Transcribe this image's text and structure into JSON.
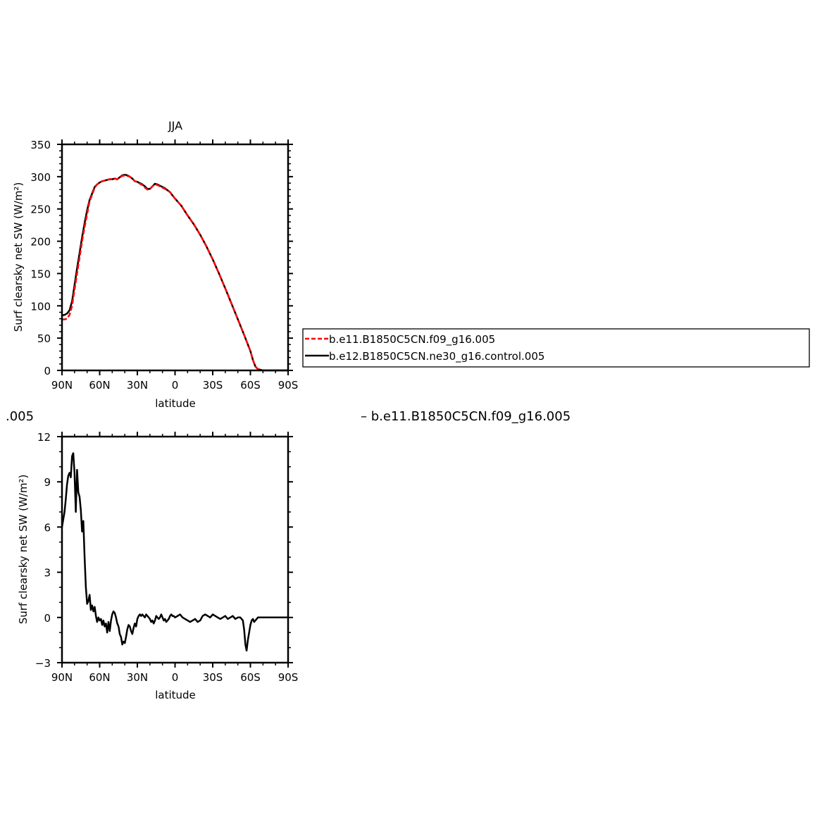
{
  "title_prefix": ".005",
  "diff_label": "– b.e11.B1850C5CN.f09_g16.005",
  "chart_data": [
    {
      "type": "line",
      "title": "JJA",
      "xlabel": "latitude",
      "ylabel": "Surf clearsky net SW (W/m²)",
      "x_ticks": [
        "90N",
        "60N",
        "30N",
        "0",
        "30S",
        "60S",
        "90S"
      ],
      "x_tick_values": [
        90,
        60,
        30,
        0,
        -30,
        -60,
        -90
      ],
      "y_ticks": [
        "0",
        "50",
        "100",
        "150",
        "200",
        "250",
        "300",
        "350"
      ],
      "ylim": [
        0,
        350
      ],
      "xlim": [
        90,
        -90
      ],
      "legend": [
        {
          "name": "b.e11.B1850C5CN.f09_g16.005",
          "color": "#ff0000",
          "dash": true
        },
        {
          "name": "b.e12.B1850C5CN.ne30_g16.control.005",
          "color": "#000000",
          "dash": false
        }
      ],
      "series": [
        {
          "name": "b.e11.B1850C5CN.f09_g16.005",
          "color": "#ff0000",
          "dash": true,
          "x": [
            90,
            88,
            86,
            84,
            82,
            80,
            78,
            76,
            74,
            72,
            70,
            68,
            66,
            64,
            62,
            60,
            58,
            56,
            54,
            52,
            50,
            48,
            46,
            44,
            42,
            40,
            38,
            36,
            34,
            32,
            30,
            28,
            26,
            24,
            22,
            20,
            18,
            16,
            14,
            12,
            10,
            8,
            6,
            4,
            2,
            0,
            -5,
            -10,
            -15,
            -20,
            -25,
            -30,
            -35,
            -40,
            -45,
            -50,
            -55,
            -60,
            -62,
            -64,
            -66,
            -68,
            -70,
            -75,
            -80,
            -85,
            -90
          ],
          "y": [
            79,
            79,
            80,
            86,
            100,
            125,
            150,
            175,
            200,
            222,
            242,
            262,
            272,
            283,
            288,
            291,
            293,
            294,
            295,
            296,
            296,
            297,
            296,
            299,
            301,
            302,
            301,
            300,
            297,
            293,
            292,
            289,
            287,
            283,
            280,
            281,
            285,
            288,
            287,
            285,
            283,
            281,
            279,
            276,
            271,
            266,
            255,
            240,
            226,
            210,
            192,
            172,
            150,
            127,
            103,
            79,
            55,
            30,
            16,
            6,
            2,
            1,
            0,
            0,
            0,
            0,
            0
          ]
        },
        {
          "name": "b.e12.B1850C5CN.ne30_g16.control.005",
          "color": "#000000",
          "dash": false,
          "x": [
            90,
            88,
            86,
            84,
            82,
            80,
            78,
            76,
            74,
            72,
            70,
            68,
            66,
            64,
            62,
            60,
            58,
            56,
            54,
            52,
            50,
            48,
            46,
            44,
            42,
            40,
            38,
            36,
            34,
            32,
            30,
            28,
            26,
            24,
            22,
            20,
            18,
            16,
            14,
            12,
            10,
            8,
            6,
            4,
            2,
            0,
            -5,
            -10,
            -15,
            -20,
            -25,
            -30,
            -35,
            -40,
            -45,
            -50,
            -55,
            -60,
            -62,
            -64,
            -66,
            -68,
            -70,
            -75,
            -80,
            -85,
            -90
          ],
          "y": [
            85,
            86,
            88,
            93,
            107,
            132,
            158,
            182,
            206,
            228,
            248,
            264,
            274,
            284,
            288,
            291,
            293,
            294,
            295,
            296,
            296,
            297,
            296,
            299,
            302,
            303,
            302,
            300,
            297,
            293,
            292,
            290,
            288,
            285,
            281,
            281,
            285,
            289,
            288,
            286,
            284,
            282,
            279,
            276,
            271,
            266,
            255,
            240,
            226,
            210,
            192,
            172,
            150,
            127,
            103,
            79,
            55,
            30,
            16,
            6,
            2,
            1,
            0,
            0,
            0,
            0,
            0
          ]
        }
      ]
    },
    {
      "type": "line",
      "title": "",
      "xlabel": "latitude",
      "ylabel": "Surf clearsky net SW (W/m²)",
      "x_ticks": [
        "90N",
        "60N",
        "30N",
        "0",
        "30S",
        "60S",
        "90S"
      ],
      "x_tick_values": [
        90,
        60,
        30,
        0,
        -30,
        -60,
        -90
      ],
      "y_ticks": [
        "−3",
        "0",
        "3",
        "6",
        "9",
        "12"
      ],
      "y_tick_values": [
        -3,
        0,
        3,
        6,
        9,
        12
      ],
      "ylim": [
        -3,
        12
      ],
      "xlim": [
        90,
        -90
      ],
      "series": [
        {
          "color": "#000000",
          "dash": false,
          "x": [
            90,
            88,
            87,
            86,
            85,
            84,
            83,
            82,
            81,
            80,
            79,
            78,
            77,
            76,
            75,
            74,
            73,
            72,
            71,
            70,
            69,
            68,
            67,
            66,
            65,
            64,
            63,
            62,
            61,
            60,
            59,
            58,
            57,
            56,
            55,
            54,
            53,
            52,
            51,
            50,
            49,
            48,
            47,
            46,
            45,
            44,
            43,
            42,
            41,
            40,
            39,
            38,
            37,
            36,
            35,
            34,
            33,
            32,
            31,
            30,
            29,
            28,
            27,
            26,
            25,
            24,
            23,
            22,
            21,
            20,
            19,
            18,
            17,
            16,
            15,
            14,
            13,
            12,
            11,
            10,
            9,
            8,
            7,
            6,
            5,
            4,
            3,
            2,
            1,
            0,
            -2,
            -4,
            -6,
            -8,
            -10,
            -12,
            -14,
            -16,
            -18,
            -20,
            -22,
            -24,
            -26,
            -28,
            -30,
            -32,
            -34,
            -36,
            -38,
            -40,
            -42,
            -44,
            -46,
            -48,
            -50,
            -52,
            -54,
            -55,
            -56,
            -57,
            -58,
            -59,
            -60,
            -61,
            -62,
            -63,
            -64,
            -66,
            -68,
            -70,
            -75,
            -80,
            -85,
            -90
          ],
          "y": [
            6.0,
            7.0,
            7.8,
            8.8,
            9.4,
            9.6,
            9.3,
            10.7,
            10.9,
            9.6,
            7.0,
            9.8,
            8.3,
            8.0,
            7.1,
            5.7,
            6.4,
            4.0,
            2.0,
            0.9,
            1.1,
            1.5,
            0.5,
            0.8,
            0.4,
            0.7,
            0.1,
            -0.3,
            0.0,
            -0.2,
            -0.1,
            -0.5,
            -0.2,
            -0.6,
            -0.4,
            -1.0,
            -0.3,
            -0.9,
            -0.2,
            0.2,
            0.4,
            0.3,
            0.0,
            -0.4,
            -0.6,
            -1.1,
            -1.3,
            -1.8,
            -1.6,
            -1.7,
            -1.3,
            -0.8,
            -0.5,
            -0.6,
            -0.9,
            -1.1,
            -0.7,
            -0.4,
            -0.6,
            -0.1,
            0.1,
            0.2,
            0.1,
            0.2,
            0.1,
            0.0,
            0.2,
            0.1,
            0.0,
            -0.1,
            -0.3,
            -0.2,
            -0.4,
            -0.2,
            0.1,
            0.0,
            -0.1,
            0.0,
            0.2,
            0.0,
            -0.2,
            -0.1,
            -0.3,
            -0.2,
            -0.1,
            0.1,
            0.2,
            0.1,
            0.1,
            0.0,
            0.1,
            0.2,
            0.0,
            -0.1,
            -0.2,
            -0.3,
            -0.2,
            -0.1,
            -0.3,
            -0.2,
            0.1,
            0.2,
            0.1,
            0.0,
            0.2,
            0.1,
            0.0,
            -0.1,
            0.0,
            0.1,
            -0.1,
            0.0,
            0.1,
            -0.1,
            0.0,
            0.0,
            -0.2,
            -0.8,
            -1.8,
            -2.2,
            -1.5,
            -1.0,
            -0.5,
            -0.2,
            -0.1,
            -0.3,
            -0.2,
            0.0,
            0.0,
            0.0,
            0.0,
            0.0,
            0.0,
            0.0
          ]
        }
      ]
    }
  ]
}
